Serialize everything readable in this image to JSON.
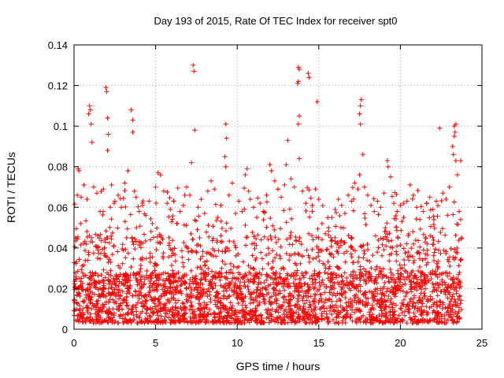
{
  "chart_data": {
    "type": "scatter",
    "title": "Day 193 of 2015, Rate Of TEC Index for receiver spt0",
    "xlabel": "GPS time / hours",
    "ylabel": "ROTI / TECUs",
    "xlim": [
      0,
      25
    ],
    "ylim": [
      0,
      0.14
    ],
    "xticks": [
      0,
      5,
      10,
      15,
      20,
      25
    ],
    "xtick_labels": [
      "0",
      "5",
      "10",
      "15",
      "20",
      "25"
    ],
    "yticks": [
      0,
      0.02,
      0.04,
      0.06,
      0.08,
      0.1,
      0.12,
      0.14
    ],
    "ytick_labels": [
      "0",
      "0.02",
      "0.04",
      "0.06",
      "0.08",
      "0.1",
      "0.12",
      "0.14"
    ],
    "grid": true,
    "marker": "plus",
    "color": "#ff0000",
    "series": [
      {
        "name": "ROTI",
        "points": [
          [
            0.25,
            0.079
          ],
          [
            0.3,
            0.078
          ],
          [
            0.9,
            0.106
          ],
          [
            0.95,
            0.11
          ],
          [
            1.0,
            0.108
          ],
          [
            1.05,
            0.101
          ],
          [
            1.1,
            0.092
          ],
          [
            1.95,
            0.119
          ],
          [
            2.0,
            0.117
          ],
          [
            2.05,
            0.104
          ],
          [
            2.1,
            0.096
          ],
          [
            2.05,
            0.088
          ],
          [
            3.5,
            0.108
          ],
          [
            3.6,
            0.103
          ],
          [
            3.6,
            0.097
          ],
          [
            5.15,
            0.077
          ],
          [
            5.3,
            0.076
          ],
          [
            7.3,
            0.13
          ],
          [
            7.35,
            0.127
          ],
          [
            7.4,
            0.098
          ],
          [
            7.2,
            0.082
          ],
          [
            9.3,
            0.101
          ],
          [
            9.35,
            0.094
          ],
          [
            9.25,
            0.085
          ],
          [
            9.3,
            0.08
          ],
          [
            10.6,
            0.079
          ],
          [
            10.5,
            0.076
          ],
          [
            12.0,
            0.081
          ],
          [
            12.1,
            0.078
          ],
          [
            13.1,
            0.093
          ],
          [
            13.0,
            0.081
          ],
          [
            13.75,
            0.129
          ],
          [
            13.8,
            0.128
          ],
          [
            13.75,
            0.122
          ],
          [
            13.7,
            0.121
          ],
          [
            13.8,
            0.105
          ],
          [
            13.75,
            0.101
          ],
          [
            13.8,
            0.084
          ],
          [
            14.35,
            0.126
          ],
          [
            14.4,
            0.124
          ],
          [
            14.9,
            0.112
          ],
          [
            17.6,
            0.113
          ],
          [
            17.55,
            0.11
          ],
          [
            17.5,
            0.106
          ],
          [
            17.55,
            0.101
          ],
          [
            17.7,
            0.086
          ],
          [
            17.5,
            0.076
          ],
          [
            19.2,
            0.083
          ],
          [
            19.25,
            0.08
          ],
          [
            22.4,
            0.099
          ],
          [
            23.3,
            0.1
          ],
          [
            23.4,
            0.101
          ],
          [
            23.35,
            0.097
          ],
          [
            23.3,
            0.095
          ],
          [
            23.2,
            0.09
          ],
          [
            23.25,
            0.086
          ],
          [
            23.4,
            0.083
          ],
          [
            23.7,
            0.083
          ],
          [
            0.0,
            0.009
          ],
          [
            0.1,
            0.045
          ],
          [
            0.2,
            0.066
          ],
          [
            0.4,
            0.052
          ],
          [
            0.6,
            0.071
          ],
          [
            0.8,
            0.064
          ],
          [
            1.2,
            0.07
          ],
          [
            1.4,
            0.067
          ],
          [
            1.6,
            0.058
          ],
          [
            1.8,
            0.069
          ],
          [
            2.3,
            0.071
          ],
          [
            2.5,
            0.063
          ],
          [
            2.7,
            0.066
          ],
          [
            2.9,
            0.06
          ],
          [
            3.1,
            0.072
          ],
          [
            3.3,
            0.078
          ],
          [
            3.8,
            0.065
          ],
          [
            4.0,
            0.058
          ],
          [
            4.2,
            0.061
          ],
          [
            4.4,
            0.056
          ],
          [
            4.6,
            0.063
          ],
          [
            4.8,
            0.052
          ],
          [
            5.0,
            0.07
          ],
          [
            5.5,
            0.068
          ],
          [
            5.7,
            0.062
          ],
          [
            5.9,
            0.059
          ],
          [
            6.1,
            0.063
          ],
          [
            6.3,
            0.052
          ],
          [
            6.5,
            0.058
          ],
          [
            6.7,
            0.061
          ],
          [
            6.9,
            0.07
          ],
          [
            7.1,
            0.066
          ],
          [
            7.6,
            0.06
          ],
          [
            7.8,
            0.064
          ],
          [
            8.0,
            0.057
          ],
          [
            8.2,
            0.068
          ],
          [
            8.4,
            0.073
          ],
          [
            8.6,
            0.069
          ],
          [
            8.8,
            0.055
          ],
          [
            9.0,
            0.061
          ],
          [
            9.5,
            0.066
          ],
          [
            9.7,
            0.072
          ],
          [
            9.9,
            0.057
          ],
          [
            10.1,
            0.063
          ],
          [
            10.3,
            0.058
          ],
          [
            10.8,
            0.064
          ],
          [
            11.0,
            0.06
          ],
          [
            11.2,
            0.055
          ],
          [
            11.4,
            0.062
          ],
          [
            11.6,
            0.058
          ],
          [
            11.8,
            0.066
          ],
          [
            12.3,
            0.073
          ],
          [
            12.5,
            0.069
          ],
          [
            12.7,
            0.065
          ],
          [
            12.9,
            0.071
          ],
          [
            13.3,
            0.074
          ],
          [
            13.5,
            0.07
          ],
          [
            14.0,
            0.068
          ],
          [
            14.2,
            0.062
          ],
          [
            14.6,
            0.058
          ],
          [
            14.8,
            0.069
          ],
          [
            15.0,
            0.064
          ],
          [
            15.2,
            0.052
          ],
          [
            15.4,
            0.047
          ],
          [
            15.6,
            0.05
          ],
          [
            15.8,
            0.055
          ],
          [
            16.0,
            0.059
          ],
          [
            16.2,
            0.064
          ],
          [
            16.4,
            0.061
          ],
          [
            16.6,
            0.057
          ],
          [
            16.8,
            0.066
          ],
          [
            17.0,
            0.063
          ],
          [
            17.2,
            0.072
          ],
          [
            17.4,
            0.069
          ],
          [
            17.8,
            0.07
          ],
          [
            18.0,
            0.066
          ],
          [
            18.2,
            0.061
          ],
          [
            18.4,
            0.058
          ],
          [
            18.6,
            0.063
          ],
          [
            18.8,
            0.06
          ],
          [
            19.0,
            0.067
          ],
          [
            19.4,
            0.075
          ],
          [
            19.6,
            0.062
          ],
          [
            19.8,
            0.058
          ],
          [
            20.0,
            0.061
          ],
          [
            20.2,
            0.055
          ],
          [
            20.4,
            0.063
          ],
          [
            20.6,
            0.071
          ],
          [
            20.8,
            0.066
          ],
          [
            21.0,
            0.06
          ],
          [
            21.2,
            0.054
          ],
          [
            21.4,
            0.058
          ],
          [
            21.6,
            0.062
          ],
          [
            21.8,
            0.065
          ],
          [
            22.0,
            0.059
          ],
          [
            22.2,
            0.063
          ],
          [
            22.6,
            0.067
          ],
          [
            22.8,
            0.064
          ],
          [
            23.0,
            0.07
          ],
          [
            23.5,
            0.076
          ],
          [
            23.6,
            0.058
          ],
          [
            23.7,
            0.054
          ],
          [
            23.75,
            0.045
          ]
        ]
      }
    ],
    "dense_band": {
      "description": "dense cloud of ROTI values sampled continuously",
      "x_range": [
        0,
        23.75
      ],
      "typical_y_range": [
        0.003,
        0.045
      ]
    }
  }
}
